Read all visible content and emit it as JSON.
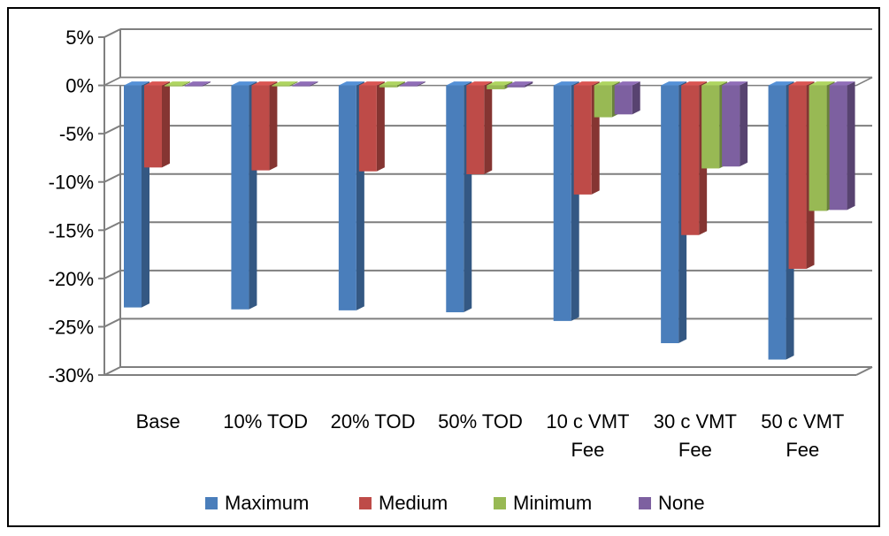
{
  "chart_data": {
    "type": "bar",
    "categories": [
      [
        "Base"
      ],
      [
        "10% TOD"
      ],
      [
        "20% TOD"
      ],
      [
        "50% TOD"
      ],
      [
        "10 c VMT",
        "Fee"
      ],
      [
        "30 c VMT",
        "Fee"
      ],
      [
        "50 c VMT",
        "Fee"
      ]
    ],
    "series": [
      {
        "name": "Maximum",
        "color": "#4A7EBB",
        "values": [
          -23.0,
          -23.2,
          -23.3,
          -23.5,
          -24.4,
          -26.7,
          -28.4
        ]
      },
      {
        "name": "Medium",
        "color": "#BE4B48",
        "values": [
          -8.5,
          -8.8,
          -8.9,
          -9.2,
          -11.3,
          -15.5,
          -19.0
        ]
      },
      {
        "name": "Minimum",
        "color": "#98B954",
        "values": [
          -0.1,
          -0.1,
          -0.2,
          -0.4,
          -3.3,
          -8.6,
          -13.0
        ]
      },
      {
        "name": "None",
        "color": "#7D60A0",
        "values": [
          -0.1,
          -0.1,
          -0.1,
          -0.2,
          -3.0,
          -8.4,
          -12.9
        ]
      }
    ],
    "yticks": [
      "5%",
      "0%",
      "-5%",
      "-10%",
      "-15%",
      "-20%",
      "-25%",
      "-30%"
    ],
    "ylim": [
      -30,
      5
    ],
    "title": "",
    "xlabel": "",
    "ylabel": "",
    "grid": true,
    "legend": "bottom",
    "style": "3d-clustered-column"
  }
}
